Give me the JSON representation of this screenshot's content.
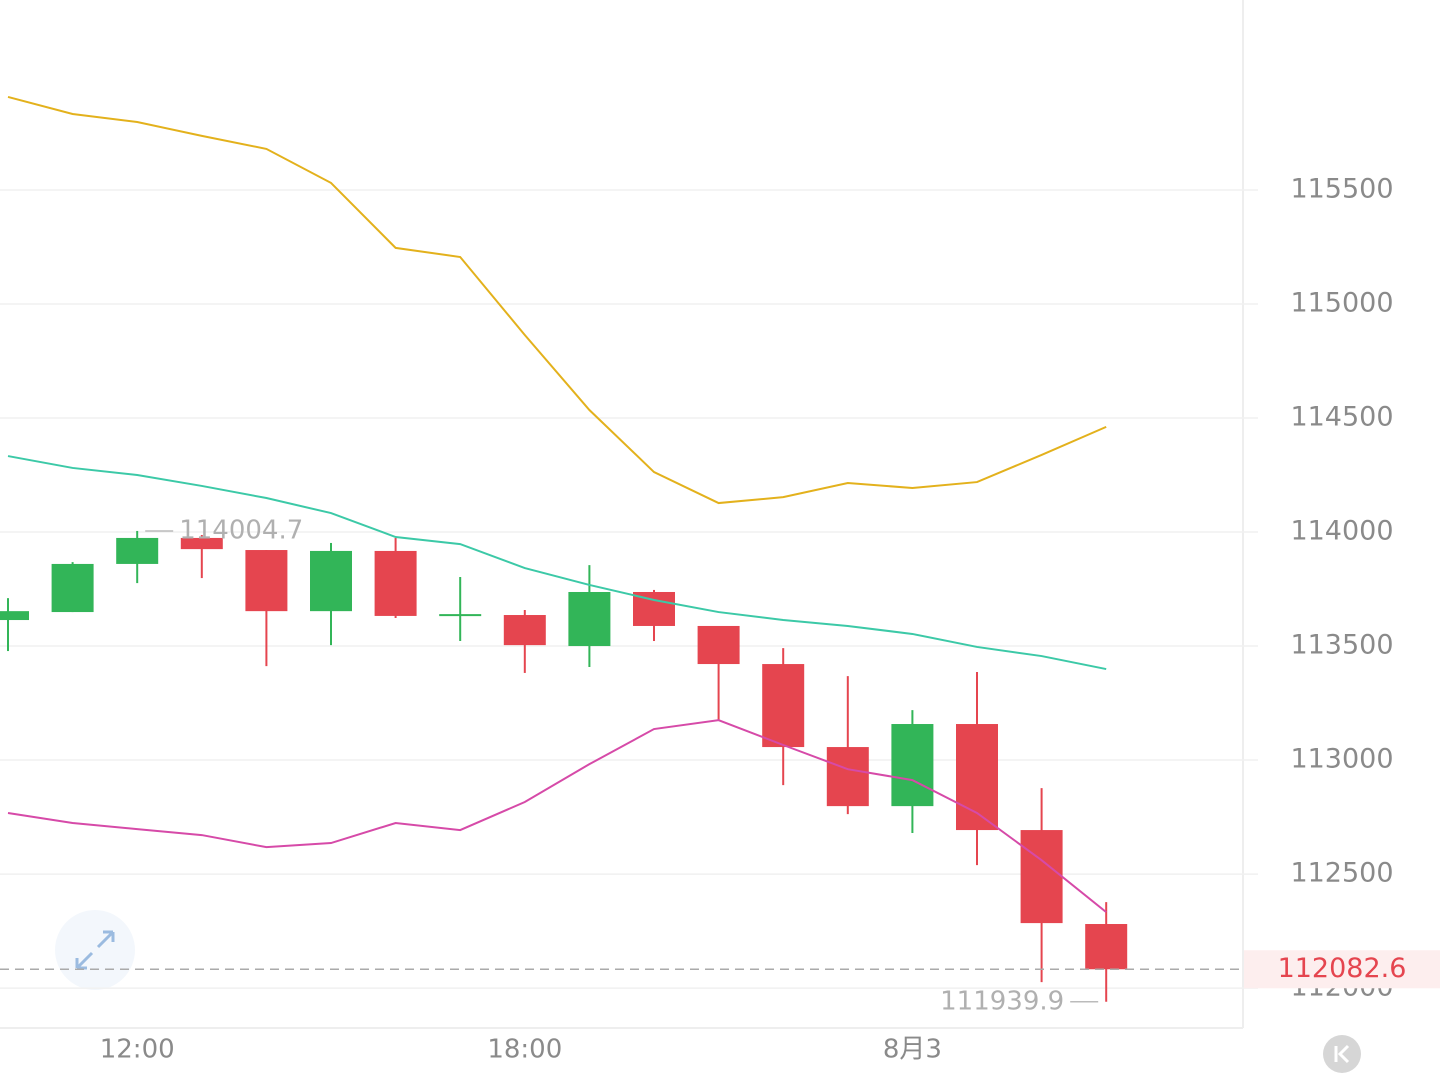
{
  "chart_data": {
    "type": "candlestick",
    "categories": [
      null,
      null,
      "12:00",
      null,
      null,
      null,
      null,
      null,
      "18:00",
      null,
      null,
      null,
      null,
      null,
      "8月3",
      null,
      null,
      null
    ],
    "open": [
      113614,
      113649,
      113860,
      113974,
      113921,
      113653,
      113917,
      113640,
      113636,
      113500,
      113737,
      113588,
      113421,
      113057,
      112798,
      113158,
      112693,
      112281
    ],
    "high": [
      113710,
      113868,
      114004.7,
      113987,
      113921,
      113952,
      113974,
      113803,
      113658,
      113855,
      113746,
      113588,
      113491,
      113368,
      113219,
      113386,
      112877,
      112377
    ],
    "low": [
      113478,
      113649,
      113776,
      113798,
      113412,
      113504,
      113623,
      113522,
      113382,
      113408,
      113522,
      113175,
      112890,
      112763,
      112680,
      112539,
      112026,
      111939.9
    ],
    "close": [
      113653,
      113860,
      113974,
      113925,
      113653,
      113917,
      113632,
      113640,
      113504,
      113737,
      113588,
      113421,
      113057,
      112798,
      113158,
      112693,
      112285,
      112082.6
    ],
    "up_color": "#32b558",
    "down_color": "#e5454f",
    "lines": [
      {
        "color": "#e3b11c",
        "values": [
          115908,
          115833,
          115798,
          115737,
          115680,
          115531,
          115246,
          115206,
          114864,
          114535,
          114263,
          114127,
          114153,
          114215,
          114193,
          114219,
          114338,
          114461
        ]
      },
      {
        "color": "#3cc9a7",
        "values": [
          114333,
          114281,
          114250,
          114202,
          114149,
          114083,
          113978,
          113947,
          113842,
          113768,
          113702,
          113649,
          113614,
          113588,
          113553,
          113496,
          113456,
          113399
        ]
      },
      {
        "color": "#d64aa8",
        "values": [
          112768,
          112724,
          112697,
          112671,
          112618,
          112636,
          112724,
          112693,
          112816,
          112982,
          113136,
          113175,
          113066,
          112960,
          112912,
          112768,
          112561,
          112333
        ]
      }
    ],
    "ylim": [
      111825,
      116333
    ],
    "yticks": [
      112000,
      112500,
      113000,
      113500,
      114000,
      114500,
      115000,
      115500
    ],
    "grid": true
  }
}
